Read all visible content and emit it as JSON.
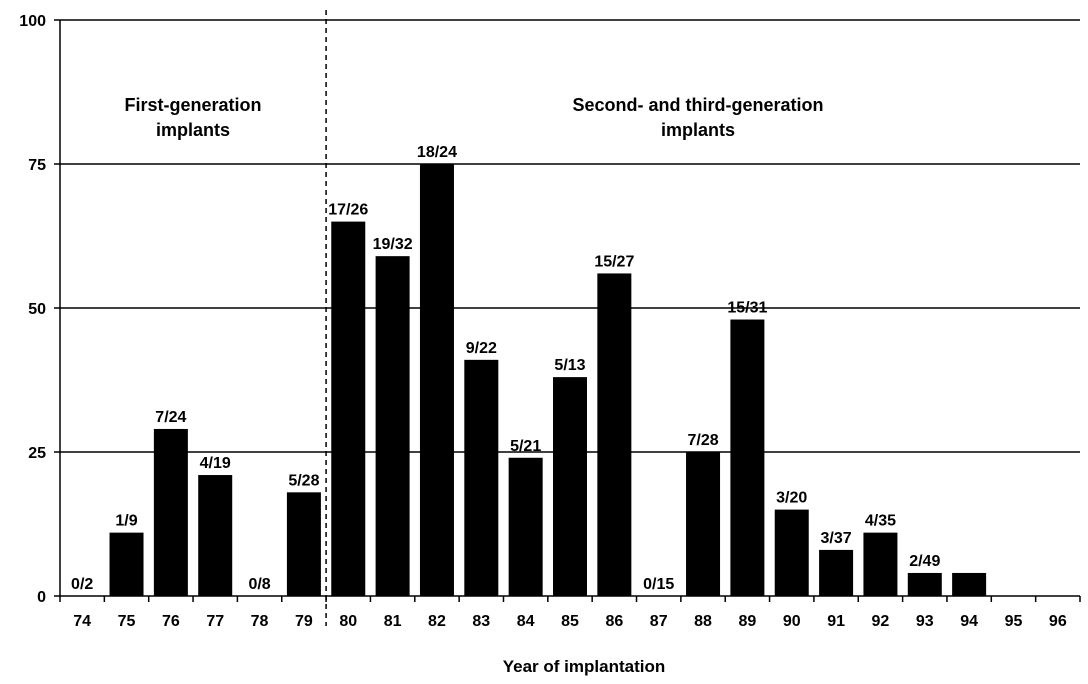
{
  "chart_data": {
    "type": "bar",
    "xlabel": "Year of implantation",
    "ylabel": "",
    "ylim": [
      0,
      100
    ],
    "yticks": [
      0,
      25,
      50,
      75,
      100
    ],
    "grid": true,
    "categories": [
      "74",
      "75",
      "76",
      "77",
      "78",
      "79",
      "80",
      "81",
      "82",
      "83",
      "84",
      "85",
      "86",
      "87",
      "88",
      "89",
      "90",
      "91",
      "92",
      "93",
      "94",
      "95",
      "96"
    ],
    "values": [
      0,
      11,
      29,
      21,
      0,
      18,
      65,
      59,
      75,
      41,
      24,
      38,
      56,
      0,
      25,
      48,
      15,
      8,
      11,
      4,
      4,
      0,
      0
    ],
    "data_labels": [
      "0/2",
      "1/9",
      "7/24",
      "4/19",
      "0/8",
      "5/28",
      "17/26",
      "19/32",
      "18/24",
      "9/22",
      "5/21",
      "5/13",
      "15/27",
      "0/15",
      "7/28",
      "15/31",
      "3/20",
      "3/37",
      "4/35",
      "2/49",
      "",
      "",
      ""
    ],
    "divider_after_category": "79",
    "regions": [
      {
        "lines": [
          "First-generation",
          "implants"
        ]
      },
      {
        "lines": [
          "Second- and third-generation",
          "implants"
        ]
      }
    ],
    "bar_color": "#000000"
  }
}
